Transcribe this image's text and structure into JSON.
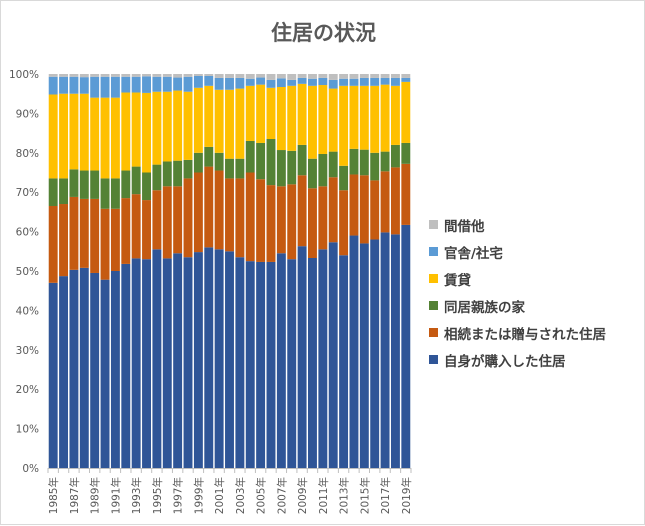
{
  "chart_data": {
    "type": "bar",
    "stacked": true,
    "title": "住居の状況",
    "xlabel": "",
    "ylabel": "",
    "ylim": [
      0,
      100
    ],
    "y_ticks": [
      "0%",
      "10%",
      "20%",
      "30%",
      "40%",
      "50%",
      "60%",
      "70%",
      "80%",
      "90%",
      "100%"
    ],
    "grid": false,
    "legend_position": "right",
    "categories": [
      "1985年",
      "1986年",
      "1987年",
      "1988年",
      "1989年",
      "1990年",
      "1991年",
      "1992年",
      "1993年",
      "1994年",
      "1995年",
      "1996年",
      "1997年",
      "1998年",
      "1999年",
      "2000年",
      "2001年",
      "2002年",
      "2003年",
      "2004年",
      "2005年",
      "2006年",
      "2007年",
      "2008年",
      "2009年",
      "2010年",
      "2011年",
      "2012年",
      "2013年",
      "2014年",
      "2015年",
      "2016年",
      "2017年",
      "2018年",
      "2019年"
    ],
    "x_tick_labels": [
      "1985年",
      "1987年",
      "1989年",
      "1991年",
      "1993年",
      "1995年",
      "1997年",
      "1999年",
      "2001年",
      "2003年",
      "2005年",
      "2007年",
      "2009年",
      "2011年",
      "2013年",
      "2015年",
      "2017年",
      "2019年"
    ],
    "series": [
      {
        "name": "自身が購入した住居",
        "color": "#2f5597",
        "values": [
          47.0,
          48.7,
          50.3,
          50.8,
          49.5,
          47.8,
          50.0,
          51.8,
          53.2,
          53.0,
          55.5,
          53.2,
          54.5,
          53.5,
          54.8,
          56.0,
          55.5,
          55.0,
          53.5,
          52.5,
          52.3,
          52.3,
          54.5,
          53.0,
          56.3,
          53.3,
          55.5,
          57.3,
          54.0,
          59.0,
          57.0,
          58.0,
          59.8,
          59.3,
          61.7
        ]
      },
      {
        "name": "相続または贈与された住居",
        "color": "#c55a11",
        "values": [
          19.5,
          18.3,
          18.5,
          17.5,
          18.8,
          18.0,
          15.8,
          16.7,
          16.3,
          15.0,
          15.0,
          18.3,
          17.0,
          20.0,
          20.2,
          20.5,
          20.0,
          18.5,
          20.0,
          22.5,
          21.0,
          19.5,
          17.0,
          19.0,
          18.0,
          17.7,
          16.0,
          16.5,
          16.5,
          15.5,
          17.3,
          15.0,
          15.5,
          17.0,
          15.5
        ]
      },
      {
        "name": "同居親族の家",
        "color": "#548235",
        "values": [
          7.0,
          6.5,
          7.0,
          7.2,
          7.2,
          7.7,
          7.7,
          7.0,
          7.0,
          7.0,
          6.5,
          6.3,
          6.5,
          4.7,
          5.0,
          5.0,
          4.5,
          5.0,
          5.0,
          8.0,
          9.2,
          11.7,
          9.2,
          8.5,
          7.7,
          7.5,
          8.2,
          6.5,
          6.2,
          6.5,
          6.5,
          7.0,
          5.0,
          5.7,
          5.3
        ]
      },
      {
        "name": "賃貸",
        "color": "#ffc000",
        "values": [
          21.3,
          21.5,
          19.2,
          19.5,
          18.5,
          20.5,
          20.5,
          19.8,
          18.8,
          20.2,
          18.5,
          17.7,
          17.8,
          17.3,
          16.5,
          15.5,
          16.0,
          17.5,
          17.8,
          14.0,
          14.8,
          13.0,
          16.0,
          16.5,
          15.5,
          18.5,
          17.5,
          16.0,
          20.3,
          16.0,
          16.2,
          17.0,
          17.0,
          15.0,
          15.5
        ]
      },
      {
        "name": "官舎/社宅",
        "color": "#5b9bd5",
        "values": [
          4.5,
          4.3,
          4.3,
          4.2,
          5.3,
          5.3,
          5.3,
          4.0,
          4.0,
          4.2,
          3.8,
          3.8,
          3.3,
          3.8,
          3.0,
          2.5,
          3.0,
          3.0,
          2.7,
          1.8,
          1.8,
          2.0,
          2.2,
          1.5,
          1.5,
          1.8,
          1.8,
          2.2,
          1.8,
          1.8,
          2.0,
          2.0,
          1.7,
          2.0,
          1.0
        ]
      },
      {
        "name": "間借他",
        "color": "#bfbfbf",
        "values": [
          0.7,
          0.7,
          0.7,
          0.8,
          0.7,
          0.7,
          0.7,
          0.7,
          0.7,
          0.6,
          0.7,
          0.7,
          0.9,
          0.7,
          0.5,
          0.5,
          1.0,
          1.0,
          1.0,
          1.2,
          0.9,
          1.5,
          1.1,
          1.5,
          1.0,
          1.2,
          1.0,
          1.5,
          1.2,
          1.2,
          1.0,
          1.0,
          1.0,
          1.0,
          1.0
        ]
      }
    ]
  }
}
